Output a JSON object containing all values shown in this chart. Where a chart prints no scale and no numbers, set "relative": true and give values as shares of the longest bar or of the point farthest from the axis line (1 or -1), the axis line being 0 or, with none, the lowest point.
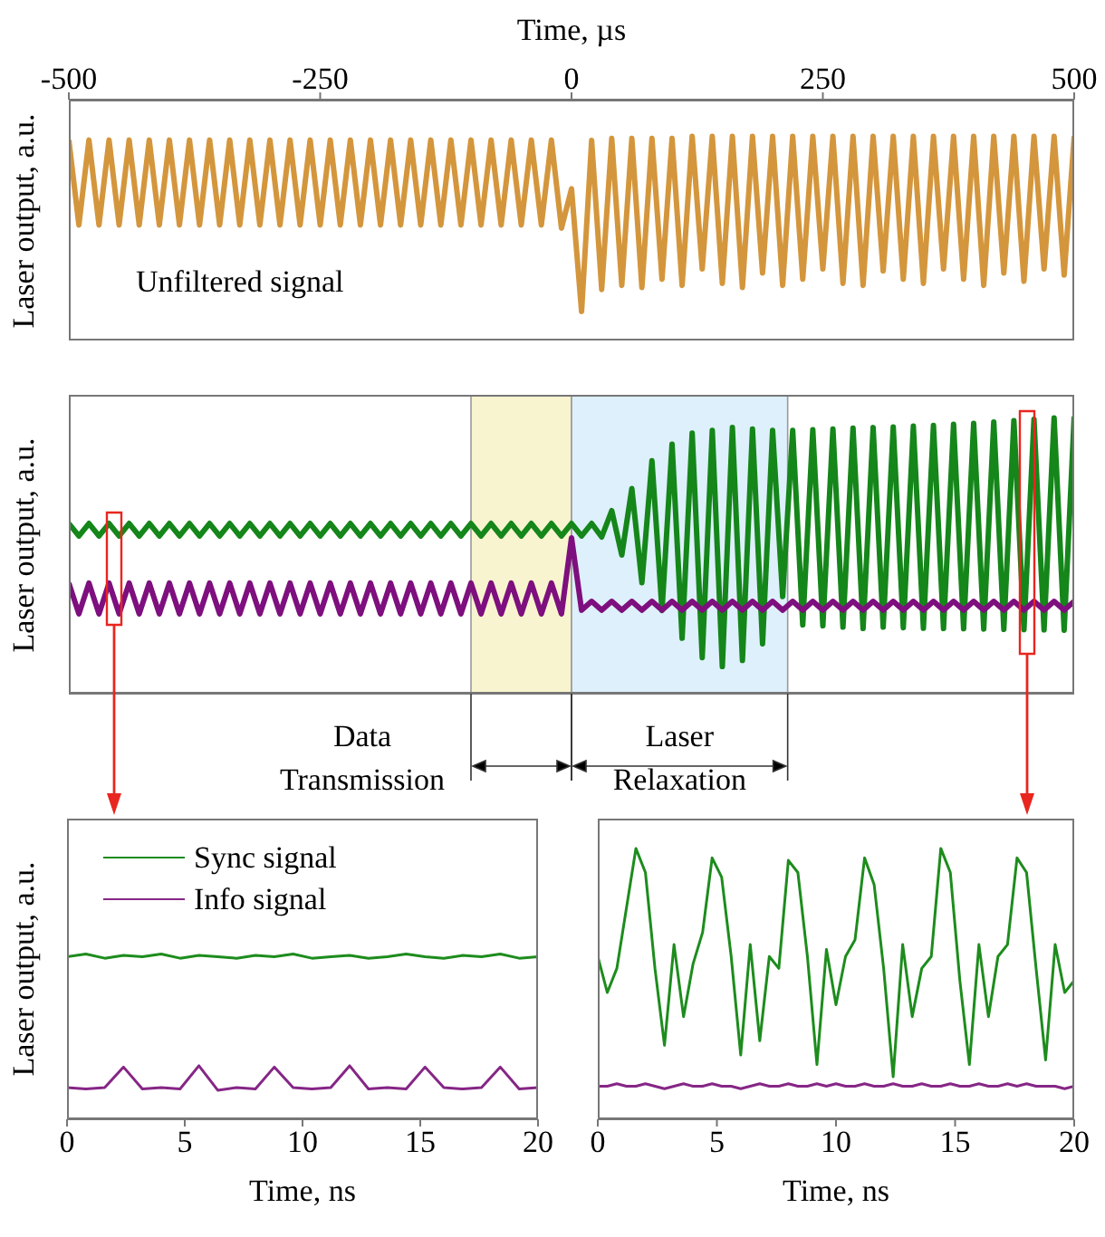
{
  "chart_data": [
    {
      "type": "line",
      "xlabel": "Time, µs",
      "ylabel": "Laser output, a.u.",
      "relative": true,
      "marker": "none",
      "tick_labels": "x",
      "xlim": [
        -500,
        500
      ],
      "xticks": [
        -500,
        -250,
        0,
        250,
        500
      ],
      "x": [
        -500,
        -490,
        -480,
        -470,
        -460,
        -450,
        -440,
        -430,
        -420,
        -410,
        -400,
        -390,
        -380,
        -370,
        -360,
        -350,
        -340,
        -330,
        -320,
        -310,
        -300,
        -290,
        -280,
        -270,
        -260,
        -250,
        -240,
        -230,
        -220,
        -210,
        -200,
        -190,
        -180,
        -170,
        -160,
        -150,
        -140,
        -130,
        -120,
        -110,
        -100,
        -90,
        -80,
        -70,
        -60,
        -50,
        -40,
        -30,
        -20,
        -10,
        0,
        10,
        20,
        30,
        40,
        50,
        60,
        70,
        80,
        90,
        100,
        110,
        120,
        130,
        140,
        150,
        160,
        170,
        180,
        190,
        200,
        210,
        220,
        230,
        240,
        250,
        260,
        270,
        280,
        290,
        300,
        310,
        320,
        330,
        340,
        350,
        360,
        370,
        380,
        390,
        400,
        410,
        420,
        430,
        440,
        450,
        460,
        470,
        480,
        490,
        500
      ],
      "series": [
        {
          "color": "#d4963c",
          "values": [
            0.982,
            0.566,
            0.982,
            0.566,
            0.982,
            0.566,
            0.982,
            0.566,
            0.982,
            0.566,
            0.982,
            0.566,
            0.982,
            0.566,
            0.982,
            0.566,
            0.982,
            0.566,
            0.982,
            0.566,
            0.982,
            0.566,
            0.982,
            0.566,
            0.982,
            0.566,
            0.982,
            0.566,
            0.982,
            0.566,
            0.982,
            0.566,
            0.982,
            0.566,
            0.982,
            0.566,
            0.982,
            0.566,
            0.982,
            0.566,
            0.982,
            0.566,
            0.982,
            0.566,
            0.982,
            0.566,
            0.982,
            0.566,
            0.982,
            0.55,
            0.743,
            0.142,
            0.98,
            0.25,
            0.99,
            0.27,
            0.99,
            0.26,
            0.99,
            0.3,
            0.99,
            0.27,
            1,
            0.35,
            1,
            0.28,
            1,
            0.26,
            1,
            0.33,
            1,
            0.27,
            1,
            0.3,
            1,
            0.35,
            1,
            0.28,
            1,
            0.27,
            1,
            0.34,
            1,
            0.3,
            1,
            0.28,
            1,
            0.35,
            1,
            0.3,
            1,
            0.27,
            1,
            0.33,
            1,
            0.29,
            1,
            0.35,
            1,
            0.32,
            1
          ]
        }
      ],
      "annotations": [
        "Unfiltered signal"
      ]
    },
    {
      "type": "line",
      "ylabel": "Laser output, a.u.",
      "relative": true,
      "marker": "none",
      "tick_labels": false,
      "xlim": [
        -500,
        500
      ],
      "xticks": [
        -500,
        -250,
        0,
        250,
        500
      ],
      "x": [
        -500,
        -490,
        -480,
        -470,
        -460,
        -450,
        -440,
        -430,
        -420,
        -410,
        -400,
        -390,
        -380,
        -370,
        -360,
        -350,
        -340,
        -330,
        -320,
        -310,
        -300,
        -290,
        -280,
        -270,
        -260,
        -250,
        -240,
        -230,
        -220,
        -210,
        -200,
        -190,
        -180,
        -170,
        -160,
        -150,
        -140,
        -130,
        -120,
        -110,
        -100,
        -90,
        -80,
        -70,
        -60,
        -50,
        -40,
        -30,
        -20,
        -10,
        0,
        10,
        20,
        30,
        40,
        50,
        60,
        70,
        80,
        90,
        100,
        110,
        120,
        130,
        140,
        150,
        160,
        170,
        180,
        190,
        200,
        210,
        220,
        230,
        240,
        250,
        260,
        270,
        280,
        290,
        300,
        310,
        320,
        330,
        340,
        350,
        360,
        370,
        380,
        390,
        400,
        410,
        420,
        430,
        440,
        450,
        460,
        470,
        480,
        490,
        500
      ],
      "series": [
        {
          "color": "#15861a",
          "values": [
            0.614,
            0.569,
            0.614,
            0.569,
            0.614,
            0.569,
            0.614,
            0.569,
            0.614,
            0.569,
            0.614,
            0.569,
            0.614,
            0.569,
            0.614,
            0.569,
            0.614,
            0.569,
            0.614,
            0.569,
            0.614,
            0.569,
            0.614,
            0.569,
            0.614,
            0.569,
            0.614,
            0.569,
            0.614,
            0.569,
            0.614,
            0.569,
            0.614,
            0.569,
            0.614,
            0.569,
            0.614,
            0.569,
            0.614,
            0.569,
            0.614,
            0.569,
            0.614,
            0.569,
            0.614,
            0.569,
            0.614,
            0.569,
            0.614,
            0.569,
            0.614,
            0.569,
            0.614,
            0.565,
            0.66,
            0.5,
            0.74,
            0.4,
            0.84,
            0.3,
            0.9,
            0.2,
            0.94,
            0.13,
            0.95,
            0.098,
            0.96,
            0.12,
            0.955,
            0.18,
            0.95,
            0.35,
            0.95,
            0.248,
            0.952,
            0.245,
            0.955,
            0.24,
            0.958,
            0.235,
            0.96,
            0.24,
            0.962,
            0.238,
            0.965,
            0.236,
            0.968,
            0.235,
            0.972,
            0.234,
            0.975,
            0.233,
            0.98,
            0.232,
            0.985,
            0.231,
            0.99,
            0.23,
            0.995,
            0.229,
            1
          ]
        },
        {
          "color": "#7e0f7e",
          "values": [
            0.399,
            0.288,
            0.399,
            0.288,
            0.399,
            0.288,
            0.399,
            0.288,
            0.399,
            0.288,
            0.399,
            0.288,
            0.399,
            0.288,
            0.399,
            0.288,
            0.399,
            0.288,
            0.399,
            0.288,
            0.399,
            0.288,
            0.399,
            0.288,
            0.399,
            0.288,
            0.399,
            0.288,
            0.399,
            0.288,
            0.399,
            0.288,
            0.399,
            0.288,
            0.399,
            0.288,
            0.399,
            0.288,
            0.399,
            0.288,
            0.399,
            0.288,
            0.399,
            0.288,
            0.399,
            0.288,
            0.399,
            0.288,
            0.399,
            0.288,
            0.562,
            0.301,
            0.333,
            0.301,
            0.333,
            0.301,
            0.333,
            0.301,
            0.333,
            0.301,
            0.333,
            0.301,
            0.333,
            0.301,
            0.333,
            0.301,
            0.333,
            0.301,
            0.333,
            0.301,
            0.333,
            0.301,
            0.333,
            0.301,
            0.333,
            0.301,
            0.333,
            0.301,
            0.333,
            0.301,
            0.333,
            0.301,
            0.333,
            0.301,
            0.333,
            0.301,
            0.333,
            0.301,
            0.333,
            0.301,
            0.333,
            0.301,
            0.333,
            0.301,
            0.333,
            0.301,
            0.333,
            0.301,
            0.333,
            0.301,
            0.333
          ]
        }
      ],
      "bands": [
        {
          "axis": "x",
          "from": -100,
          "to": 0,
          "color": "#f8f4cf"
        },
        {
          "axis": "x",
          "from": 0,
          "to": 215,
          "color": "#def0fb"
        }
      ],
      "annotations": [
        "Data Transmission",
        "Laser Relaxation"
      ]
    },
    {
      "type": "line",
      "xlabel": "Time, ns",
      "ylabel": "Laser output, a.u.",
      "relative": true,
      "marker": "none",
      "tick_labels": "x",
      "legend": "top left",
      "xlim": [
        0,
        20
      ],
      "xticks": [
        0,
        5,
        10,
        15,
        20
      ],
      "x": [
        0,
        0.8,
        1.6,
        2.4,
        3.2,
        4,
        4.8,
        5.6,
        6.4,
        7.2,
        8,
        8.8,
        9.6,
        10.4,
        11.2,
        12,
        12.8,
        13.6,
        14.4,
        15.2,
        16,
        16.8,
        17.6,
        18.4,
        19.2,
        20
      ],
      "series": [
        {
          "name": "Sync signal",
          "color": "#1d8c1d",
          "values": [
            0.984,
            1,
            0.975,
            0.992,
            0.984,
            1,
            0.975,
            0.992,
            0.984,
            0.975,
            0.992,
            0.984,
            1,
            0.975,
            0.984,
            0.992,
            0.975,
            0.984,
            1,
            0.984,
            0.975,
            0.992,
            0.984,
            1,
            0.975,
            0.984
          ]
        },
        {
          "name": "Info signal",
          "color": "#862686",
          "values": [
            0.192,
            0.184,
            0.192,
            0.316,
            0.184,
            0.192,
            0.184,
            0.324,
            0.176,
            0.192,
            0.184,
            0.316,
            0.192,
            0.184,
            0.192,
            0.324,
            0.184,
            0.192,
            0.184,
            0.316,
            0.192,
            0.184,
            0.192,
            0.316,
            0.184,
            0.192
          ]
        }
      ]
    },
    {
      "type": "line",
      "xlabel": "Time, ns",
      "relative": true,
      "marker": "none",
      "tick_labels": "x",
      "xlim": [
        0,
        20
      ],
      "xticks": [
        0,
        5,
        10,
        15,
        20
      ],
      "x": [
        0,
        0.4,
        0.8,
        1.2,
        1.6,
        2,
        2.4,
        2.8,
        3.2,
        3.6,
        4,
        4.4,
        4.8,
        5.2,
        5.6,
        6,
        6.4,
        6.8,
        7.2,
        7.6,
        8,
        8.4,
        8.8,
        9.2,
        9.6,
        10,
        10.4,
        10.8,
        11.2,
        11.6,
        12,
        12.4,
        12.8,
        13.2,
        13.6,
        14,
        14.4,
        14.8,
        15.2,
        15.6,
        16,
        16.4,
        16.8,
        17.2,
        17.6,
        18,
        18.4,
        18.8,
        19.2,
        19.6,
        20
      ],
      "series": [
        {
          "color": "#1d8c1d",
          "values": [
            0.601,
            0.468,
            0.557,
            0.778,
            1,
            0.911,
            0.557,
            0.273,
            0.645,
            0.379,
            0.574,
            0.69,
            0.965,
            0.894,
            0.601,
            0.237,
            0.645,
            0.29,
            0.601,
            0.557,
            0.956,
            0.911,
            0.601,
            0.202,
            0.627,
            0.423,
            0.601,
            0.663,
            0.965,
            0.867,
            0.557,
            0.157,
            0.645,
            0.379,
            0.557,
            0.601,
            1,
            0.911,
            0.512,
            0.202,
            0.645,
            0.379,
            0.601,
            0.645,
            0.965,
            0.911,
            0.557,
            0.219,
            0.645,
            0.468,
            0.512
          ]
        },
        {
          "color": "#862686",
          "values": [
            0.122,
            0.122,
            0.131,
            0.122,
            0.122,
            0.131,
            0.122,
            0.113,
            0.122,
            0.131,
            0.122,
            0.122,
            0.131,
            0.122,
            0.122,
            0.113,
            0.122,
            0.131,
            0.122,
            0.122,
            0.131,
            0.122,
            0.122,
            0.131,
            0.122,
            0.131,
            0.122,
            0.122,
            0.131,
            0.122,
            0.122,
            0.131,
            0.122,
            0.122,
            0.131,
            0.122,
            0.122,
            0.131,
            0.122,
            0.122,
            0.131,
            0.122,
            0.122,
            0.131,
            0.122,
            0.131,
            0.122,
            0.122,
            0.122,
            0.113,
            0.122
          ]
        }
      ]
    }
  ]
}
